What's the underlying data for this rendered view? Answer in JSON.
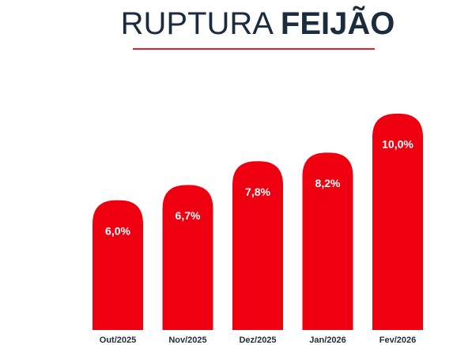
{
  "chart_data": {
    "type": "bar",
    "title": [
      "RUPTURA",
      "FEIJÃO"
    ],
    "categories": [
      "Out/2025",
      "Nov/2025",
      "Dez/2025",
      "Jan/2026",
      "Fev/2026"
    ],
    "values": [
      6.0,
      6.7,
      7.8,
      8.2,
      10.0
    ],
    "value_labels": [
      "6,0%",
      "6,7%",
      "7,8%",
      "8,2%",
      "10,0%"
    ],
    "color": "#ee0010"
  }
}
